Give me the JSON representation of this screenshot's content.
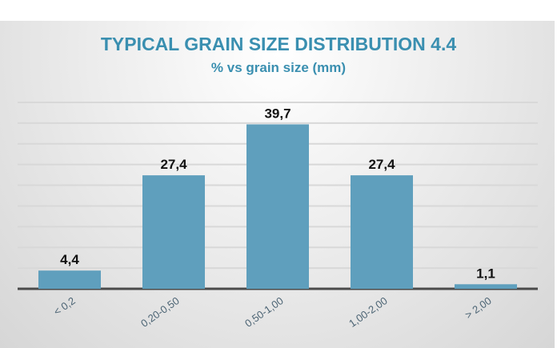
{
  "chart_data": {
    "type": "bar",
    "title": "TYPICAL GRAIN SIZE DISTRIBUTION 4.4",
    "subtitle": "% vs grain size (mm)",
    "xlabel": "grain size (mm)",
    "ylabel": "%",
    "categories": [
      "< 0,2",
      "0,20-0,50",
      "0,50-1,00",
      "1,00-2,00",
      "> 2,00"
    ],
    "values": [
      4.4,
      27.4,
      39.7,
      27.4,
      1.1
    ],
    "data_labels": [
      "4,4",
      "27,4",
      "39,7",
      "27,4",
      "1,1"
    ],
    "ylim": [
      0,
      45
    ],
    "grid": true,
    "grid_step": 5,
    "colors": {
      "bar": "#5f9fbd",
      "title": "#3a8fb0",
      "tick": "#4d6575",
      "grid": "#d8d8d8",
      "axis": "#4a4a4a"
    }
  }
}
